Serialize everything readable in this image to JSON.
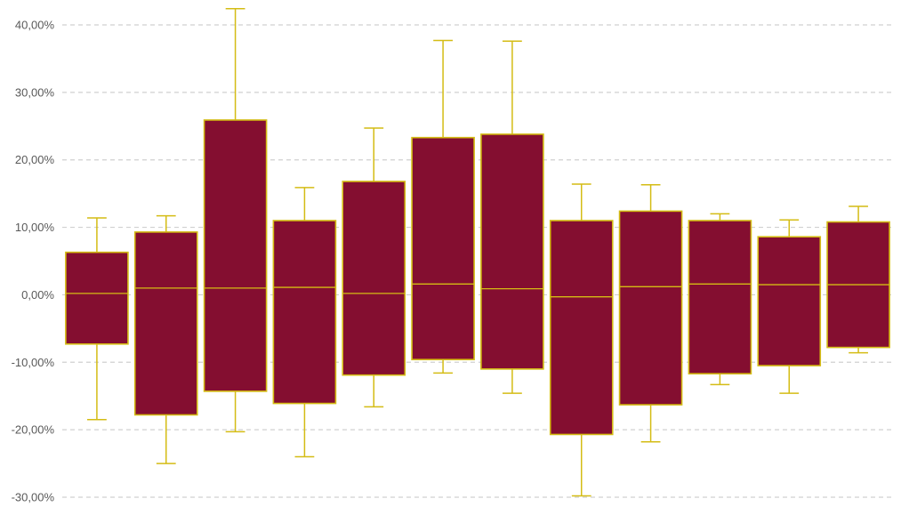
{
  "chart_data": {
    "type": "box",
    "title": "",
    "xlabel": "",
    "ylabel": "",
    "ylim": [
      -30,
      40
    ],
    "yticks": [
      -30,
      -20,
      -10,
      0,
      10,
      20,
      30,
      40
    ],
    "ytick_labels": [
      "-30,00%",
      "-20,00%",
      "-10,00%",
      "0,00%",
      "10,00%",
      "20,00%",
      "30,00%",
      "40,00%"
    ],
    "grid": true,
    "legend": "none",
    "box_fill": "#840E30",
    "box_stroke": "#D4BC14",
    "boxes": [
      {
        "min": -18.5,
        "q1": -7.3,
        "median": 0.2,
        "q3": 6.3,
        "max": 11.4
      },
      {
        "min": -25.0,
        "q1": -17.8,
        "median": 1.0,
        "q3": 9.3,
        "max": 11.7
      },
      {
        "min": -20.3,
        "q1": -14.3,
        "median": 1.0,
        "q3": 25.9,
        "max": 42.4
      },
      {
        "min": -24.0,
        "q1": -16.1,
        "median": 1.1,
        "q3": 11.0,
        "max": 15.9
      },
      {
        "min": -16.6,
        "q1": -11.9,
        "median": 0.2,
        "q3": 16.8,
        "max": 24.7
      },
      {
        "min": -11.6,
        "q1": -9.6,
        "median": 1.6,
        "q3": 23.3,
        "max": 37.7
      },
      {
        "min": -14.6,
        "q1": -11.0,
        "median": 0.9,
        "q3": 23.8,
        "max": 37.6
      },
      {
        "min": -29.8,
        "q1": -20.7,
        "median": -0.3,
        "q3": 11.0,
        "max": 16.4
      },
      {
        "min": -21.8,
        "q1": -16.3,
        "median": 1.2,
        "q3": 12.4,
        "max": 16.3
      },
      {
        "min": -13.3,
        "q1": -11.7,
        "median": 1.6,
        "q3": 11.0,
        "max": 12.0
      },
      {
        "min": -14.6,
        "q1": -10.5,
        "median": 1.5,
        "q3": 8.6,
        "max": 11.1
      },
      {
        "min": -8.6,
        "q1": -7.8,
        "median": 1.5,
        "q3": 10.8,
        "max": 13.1
      }
    ]
  }
}
